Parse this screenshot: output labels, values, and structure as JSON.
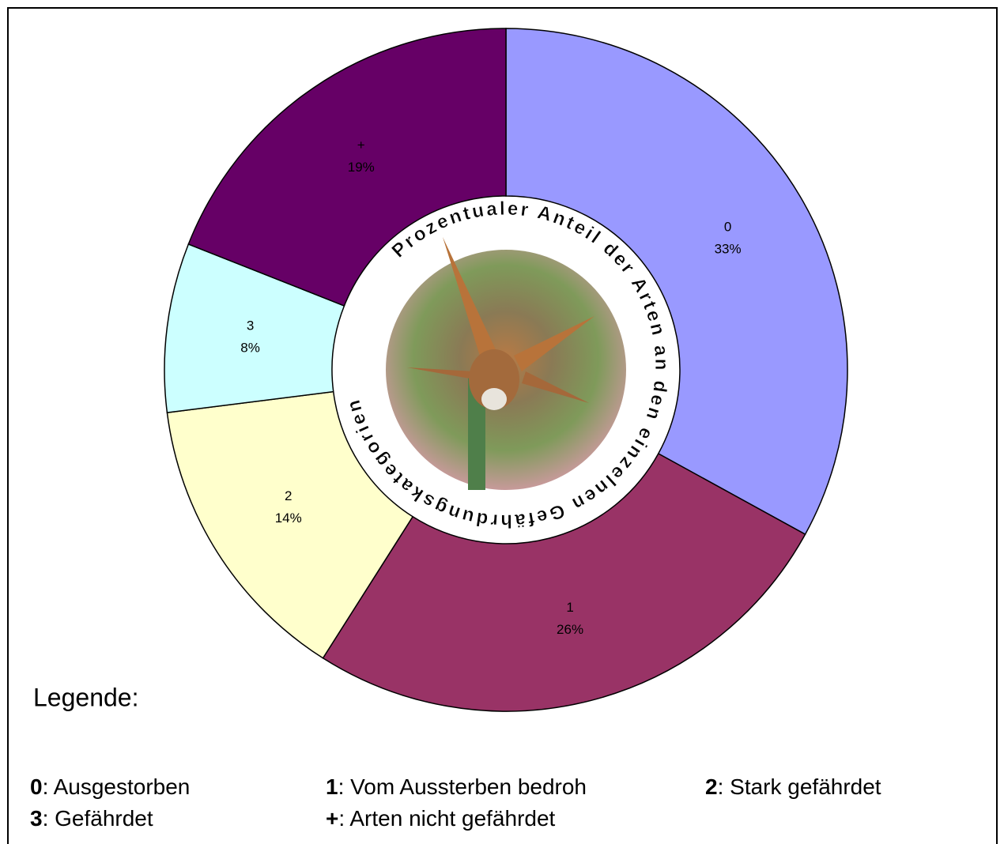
{
  "chart_data": {
    "type": "pie",
    "title": "Prozentualer Anteil der Arten an den einzelnen Gefährdungskategorien",
    "categories": [
      "0",
      "1",
      "2",
      "3",
      "+"
    ],
    "values": [
      33,
      26,
      14,
      8,
      19
    ],
    "value_labels": [
      "33%",
      "26%",
      "14%",
      "8%",
      "19%"
    ],
    "colors": [
      "#9999ff",
      "#993366",
      "#ffffcc",
      "#ccffff",
      "#660066"
    ],
    "legend": {
      "title": "Legende:",
      "entries": [
        ": Ausgestorben",
        ": Vom Aussterben bedroh",
        ": Stark gefährdet",
        ": Gefährdet",
        ": Arten nicht gefährdet"
      ]
    }
  }
}
